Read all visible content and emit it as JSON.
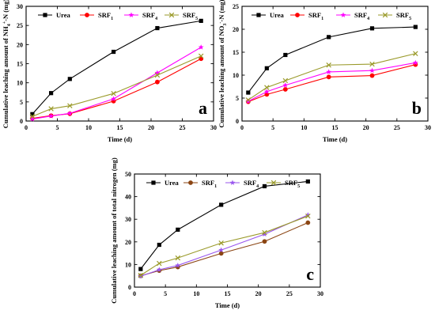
{
  "chart_data": [
    {
      "type": "line",
      "panel_label": "a",
      "xlabel": "Time (d)",
      "ylabel_parts": [
        "Cumulative leaching amount of NH",
        "4",
        "+",
        "-N (mg)"
      ],
      "xlim": [
        0,
        30
      ],
      "ylim": [
        0,
        30
      ],
      "xticks": [
        0,
        5,
        10,
        15,
        20,
        25,
        30
      ],
      "yticks": [
        0,
        5,
        10,
        15,
        20,
        25,
        30
      ],
      "x": [
        1,
        4,
        7,
        14,
        21,
        28
      ],
      "legend_position": "top",
      "series": [
        {
          "name": "Urea",
          "name_base": "Urea",
          "name_sub": "",
          "color": "#000000",
          "marker": "square",
          "values": [
            1.8,
            7.3,
            11.0,
            18.1,
            24.3,
            26.2
          ]
        },
        {
          "name": "SRF1",
          "name_base": "SRF",
          "name_sub": "1",
          "color": "#ff0000",
          "marker": "circle",
          "values": [
            0.7,
            1.4,
            1.9,
            5.2,
            10.2,
            16.3
          ]
        },
        {
          "name": "SRF4",
          "name_base": "SRF",
          "name_sub": "4",
          "color": "#ff00ff",
          "marker": "star",
          "values": [
            0.5,
            1.3,
            2.0,
            5.8,
            12.6,
            19.3
          ]
        },
        {
          "name": "SRF5",
          "name_base": "SRF",
          "name_sub": "5",
          "color": "#9a9a2a",
          "marker": "x",
          "values": [
            1.2,
            3.2,
            4.0,
            7.2,
            12.0,
            17.0
          ]
        }
      ]
    },
    {
      "type": "line",
      "panel_label": "b",
      "xlabel": "Time (d)",
      "ylabel_parts": [
        "Cumulative leaching amount of NO",
        "3",
        "-",
        "-N (mg)"
      ],
      "xlim": [
        0,
        30
      ],
      "ylim": [
        0,
        25
      ],
      "xticks": [
        0,
        5,
        10,
        15,
        20,
        25,
        30
      ],
      "yticks": [
        0,
        5,
        10,
        15,
        20,
        25
      ],
      "x": [
        1,
        4,
        7,
        14,
        21,
        28
      ],
      "legend_position": "top",
      "series": [
        {
          "name": "Urea",
          "name_base": "Urea",
          "name_sub": "",
          "color": "#000000",
          "marker": "square",
          "values": [
            6.2,
            11.5,
            14.4,
            18.3,
            20.2,
            20.5
          ]
        },
        {
          "name": "SRF1",
          "name_base": "SRF",
          "name_sub": "1",
          "color": "#ff0000",
          "marker": "circle",
          "values": [
            4.2,
            5.8,
            6.9,
            9.6,
            9.9,
            12.3
          ]
        },
        {
          "name": "SRF4",
          "name_base": "SRF",
          "name_sub": "4",
          "color": "#ff00ff",
          "marker": "star",
          "values": [
            4.3,
            6.4,
            7.8,
            10.7,
            11.0,
            12.7
          ]
        },
        {
          "name": "SRF5",
          "name_base": "SRF",
          "name_sub": "5",
          "color": "#9a9a2a",
          "marker": "x",
          "values": [
            4.6,
            7.3,
            8.8,
            12.2,
            12.4,
            14.7
          ]
        }
      ]
    },
    {
      "type": "line",
      "panel_label": "c",
      "xlabel": "Time (d)",
      "ylabel_parts": [
        "Cumulative leaching amount of total nitrogen (mg)",
        "",
        "",
        ""
      ],
      "xlim": [
        0,
        30
      ],
      "ylim": [
        0,
        50
      ],
      "xticks": [
        0,
        5,
        10,
        15,
        20,
        25,
        30
      ],
      "yticks": [
        0,
        10,
        20,
        30,
        40,
        50
      ],
      "x": [
        1,
        4,
        7,
        14,
        21,
        28
      ],
      "legend_position": "top",
      "series": [
        {
          "name": "Urea",
          "name_base": "Urea",
          "name_sub": "",
          "color": "#000000",
          "marker": "square",
          "values": [
            8.0,
            18.7,
            25.4,
            36.4,
            44.6,
            46.7
          ]
        },
        {
          "name": "SRF1",
          "name_base": "SRF",
          "name_sub": "1",
          "color": "#8b4513",
          "marker": "circle",
          "values": [
            5.0,
            7.3,
            8.9,
            14.9,
            20.2,
            28.5
          ]
        },
        {
          "name": "SRF4",
          "name_base": "SRF",
          "name_sub": "4",
          "color": "#9955ee",
          "marker": "star",
          "values": [
            4.8,
            7.7,
            9.6,
            16.4,
            23.4,
            31.9
          ]
        },
        {
          "name": "SRF5",
          "name_base": "SRF",
          "name_sub": "5",
          "color": "#9a9a2a",
          "marker": "x",
          "values": [
            5.2,
            10.5,
            12.9,
            19.5,
            24.1,
            31.4
          ]
        }
      ]
    }
  ]
}
